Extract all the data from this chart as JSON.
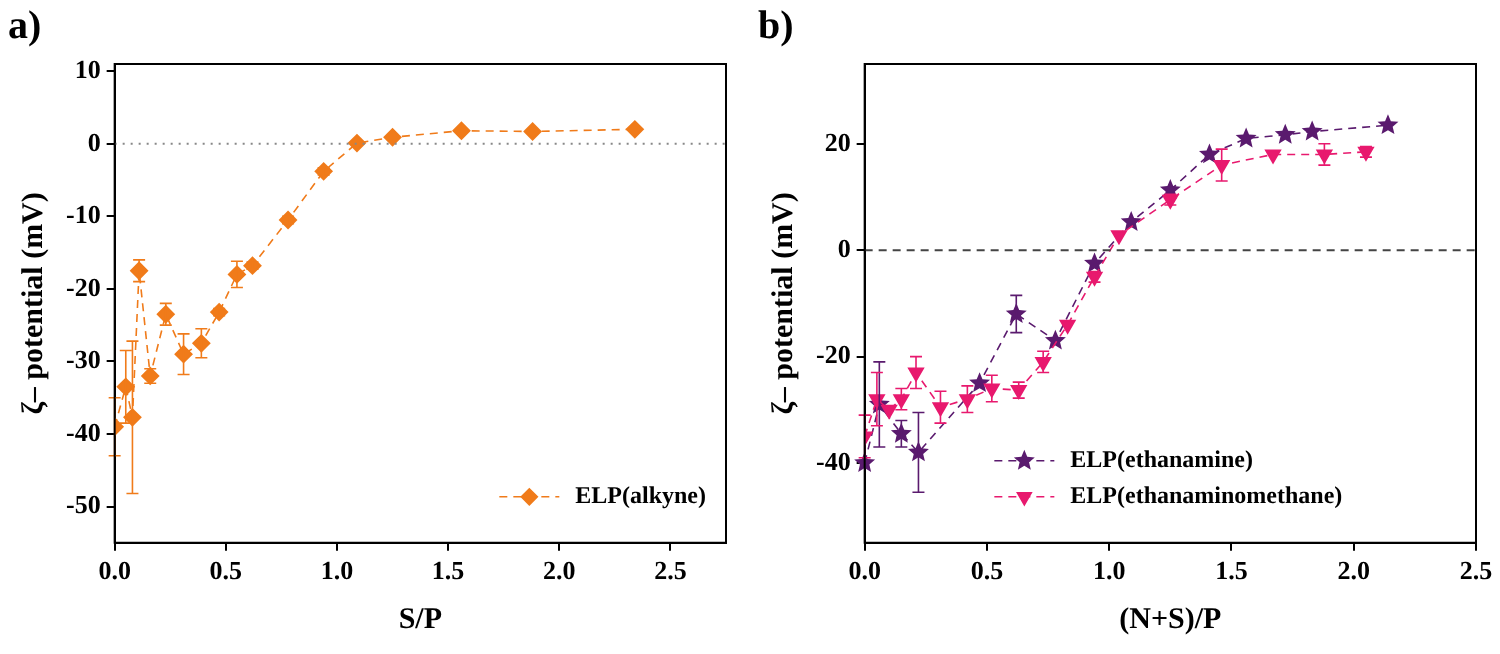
{
  "chart_data": [
    {
      "type": "line",
      "annotations": [
        "a)"
      ],
      "xlabel": "S/P",
      "ylabel": "ζ– potential (mV)",
      "xlim": [
        0,
        2.75
      ],
      "xticks": [
        {
          "value": 0,
          "label": "0.0"
        },
        0.5,
        {
          "value": 1,
          "label": "1.0"
        },
        1.5,
        {
          "value": 2,
          "label": "2.0"
        },
        2.5
      ],
      "ylim": [
        -55,
        11
      ],
      "yticks": [
        -50,
        -40,
        -30,
        -20,
        -10,
        0,
        10
      ],
      "grid": false,
      "legend": "bottom right",
      "line_style": "dashed",
      "ref_lines": [
        {
          "axis": "y",
          "value": 0,
          "color": "#888888",
          "line_style": "dotted"
        }
      ],
      "series": [
        {
          "name": "ELP(alkyne)",
          "color": "#f07b1a",
          "marker": "diamond",
          "x": [
            0.0,
            0.05,
            0.08,
            0.11,
            0.16,
            0.23,
            0.31,
            0.39,
            0.47,
            0.55,
            0.62,
            0.78,
            0.94,
            1.09,
            1.25,
            1.56,
            1.88,
            2.34
          ],
          "values": [
            -39,
            -33.5,
            -37.7,
            -17.5,
            -32,
            -23.5,
            -29,
            -27.5,
            -23.2,
            -18,
            -16.8,
            -10.5,
            -3.8,
            0.1,
            0.9,
            1.8,
            1.7,
            2.0
          ],
          "errors": [
            4,
            5,
            10.5,
            1.5,
            1,
            1.5,
            2.8,
            2,
            0.5,
            1.8,
            0.5,
            0.5,
            0.5,
            null,
            null,
            null,
            null,
            null
          ]
        }
      ]
    },
    {
      "type": "line",
      "annotations": [
        "b)"
      ],
      "xlabel": "(N+S)/P",
      "ylabel": "ζ– potential (mV)",
      "xlim": [
        0,
        2.5
      ],
      "xticks": [
        {
          "value": 0,
          "label": "0.0"
        },
        0.5,
        {
          "value": 1,
          "label": "1.0"
        },
        1.5,
        {
          "value": 2,
          "label": "2.0"
        },
        2.5
      ],
      "ylim": [
        -55,
        35
      ],
      "yticks": [
        -40,
        -20,
        0,
        20
      ],
      "grid": false,
      "legend": "bottom",
      "line_style": "dashed",
      "ref_lines": [
        {
          "axis": "y",
          "value": 0,
          "color": "#444444",
          "line_style": "dashed"
        }
      ],
      "series": [
        {
          "name": "ELP(ethanamine)",
          "color": "#5a1a6e",
          "marker": "star",
          "x": [
            0.0,
            0.06,
            0.15,
            0.22,
            0.47,
            0.62,
            0.78,
            0.94,
            1.09,
            1.25,
            1.41,
            1.56,
            1.72,
            1.83,
            2.14
          ],
          "values": [
            -40,
            -29,
            -34.5,
            -38,
            -25,
            -12,
            -17,
            -2.5,
            5.3,
            11.3,
            18,
            21,
            21.7,
            22.3,
            23.5
          ],
          "errors": [
            null,
            8,
            2.5,
            7.5,
            null,
            3.5,
            null,
            null,
            null,
            null,
            null,
            null,
            null,
            null,
            null
          ]
        },
        {
          "name": "ELP(ethanaminomethane)",
          "color": "#e8196e",
          "marker": "triangle",
          "x": [
            0.0,
            0.05,
            0.1,
            0.15,
            0.21,
            0.31,
            0.42,
            0.52,
            0.63,
            0.73,
            0.83,
            0.94,
            1.04,
            1.25,
            1.46,
            1.67,
            1.88,
            2.05
          ],
          "values": [
            -35,
            -28,
            -30,
            -28,
            -23,
            -29.5,
            -28,
            -26,
            -26.3,
            -21,
            -14,
            -5,
            2.8,
            9.5,
            16,
            18,
            18,
            18.5
          ],
          "errors": [
            4,
            5,
            null,
            2,
            3,
            3,
            2.5,
            2.5,
            1.5,
            2,
            null,
            1,
            null,
            1,
            3,
            null,
            2,
            1
          ]
        }
      ]
    }
  ]
}
